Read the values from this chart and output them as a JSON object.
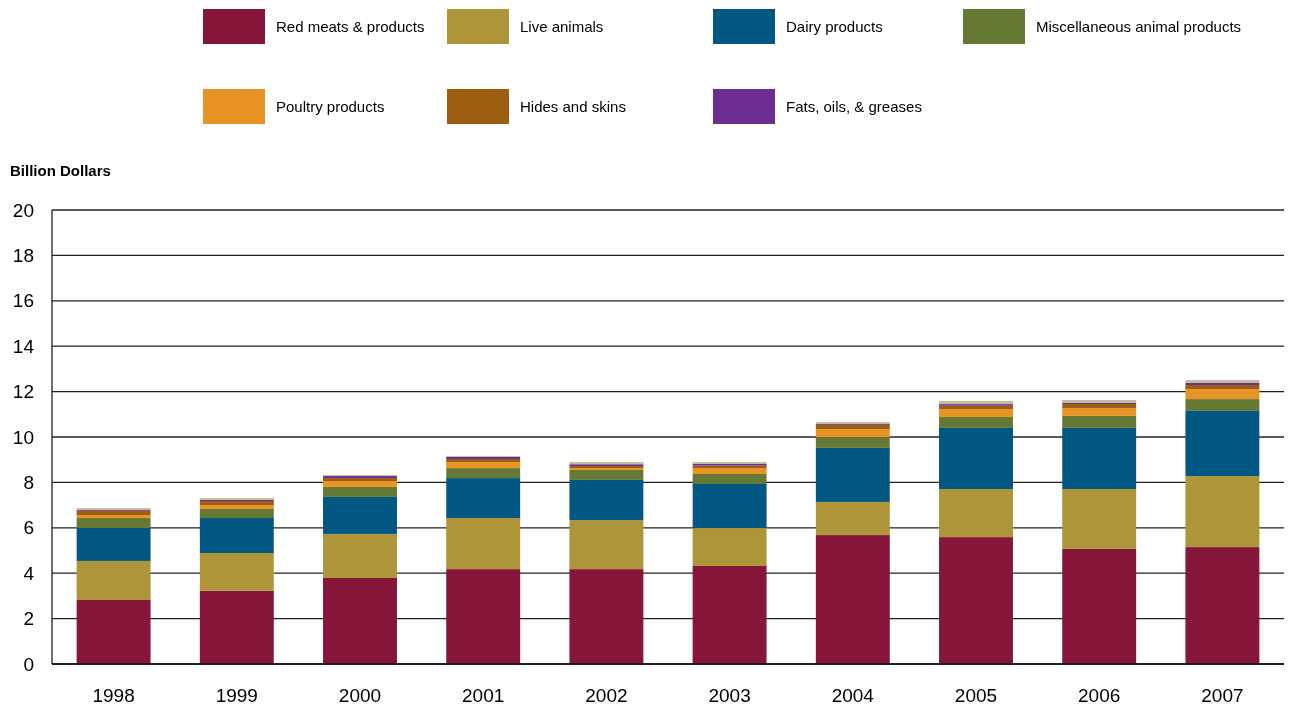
{
  "chart_data": {
    "type": "bar",
    "stacked": true,
    "ylabel": "Billion Dollars",
    "categories": [
      "1998",
      "1999",
      "2000",
      "2001",
      "2002",
      "2003",
      "2004",
      "2005",
      "2006",
      "2007"
    ],
    "series": [
      {
        "name": "Red meats & products",
        "color": "#85163a",
        "values": [
          2.82,
          3.23,
          3.79,
          4.18,
          4.18,
          4.32,
          5.68,
          5.59,
          5.07,
          5.15
        ]
      },
      {
        "name": "Live animals",
        "color": "#af9539",
        "values": [
          1.72,
          1.66,
          1.94,
          2.25,
          2.16,
          1.67,
          1.46,
          2.12,
          2.64,
          3.13
        ]
      },
      {
        "name": "Dairy products",
        "color": "#025783",
        "values": [
          1.45,
          1.54,
          1.63,
          1.76,
          1.77,
          1.94,
          2.38,
          2.69,
          2.69,
          2.87
        ]
      },
      {
        "name": "Miscellaneous animal products",
        "color": "#657935",
        "values": [
          0.44,
          0.4,
          0.44,
          0.44,
          0.44,
          0.44,
          0.48,
          0.48,
          0.53,
          0.52
        ]
      },
      {
        "name": "Poultry products",
        "color": "#e89424",
        "values": [
          0.13,
          0.17,
          0.26,
          0.27,
          0.08,
          0.26,
          0.35,
          0.35,
          0.35,
          0.44
        ]
      },
      {
        "name": "Hides and skins",
        "color": "#9c5f12",
        "values": [
          0.19,
          0.18,
          0.13,
          0.13,
          0.09,
          0.11,
          0.18,
          0.15,
          0.17,
          0.18
        ]
      },
      {
        "name": "Fats, oils, & greases",
        "color": "#6b2d90",
        "values": [
          0.05,
          0.06,
          0.09,
          0.09,
          0.08,
          0.07,
          0.04,
          0.07,
          0.05,
          0.09
        ]
      },
      {
        "color": "#c3bd9c",
        "values": [
          0.07,
          0.07,
          0.05,
          0.04,
          0.1,
          0.09,
          0.09,
          0.14,
          0.13,
          0.13
        ]
      }
    ],
    "ylim": [
      0,
      20
    ],
    "yticks": [
      0,
      2,
      4,
      6,
      8,
      10,
      12,
      14,
      16,
      18,
      20
    ],
    "grid": "y",
    "legend": "top"
  }
}
